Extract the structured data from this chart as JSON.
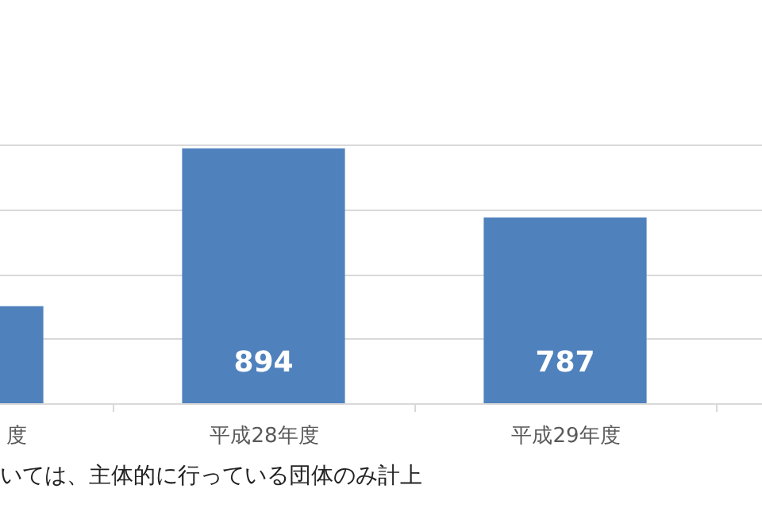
{
  "chart_data": {
    "type": "bar",
    "categories": [
      "度",
      "平成28年度",
      "平成29年度",
      null
    ],
    "values": [
      650,
      894,
      787,
      null
    ],
    "value_labels": [
      null,
      "894",
      "787",
      null
    ],
    "color": "#4f81bd",
    "ylim": [
      500,
      900
    ],
    "yticks": [
      {
        "value": 500,
        "label": null
      },
      {
        "value": 600,
        "label": null
      },
      {
        "value": 700,
        "label": null
      },
      {
        "value": 800,
        "label": null
      },
      {
        "value": 900,
        "label": null
      }
    ],
    "tick_labels": "x",
    "grid": "y",
    "annotations": [
      "いては、主体的に行っている団体のみ計上"
    ]
  }
}
